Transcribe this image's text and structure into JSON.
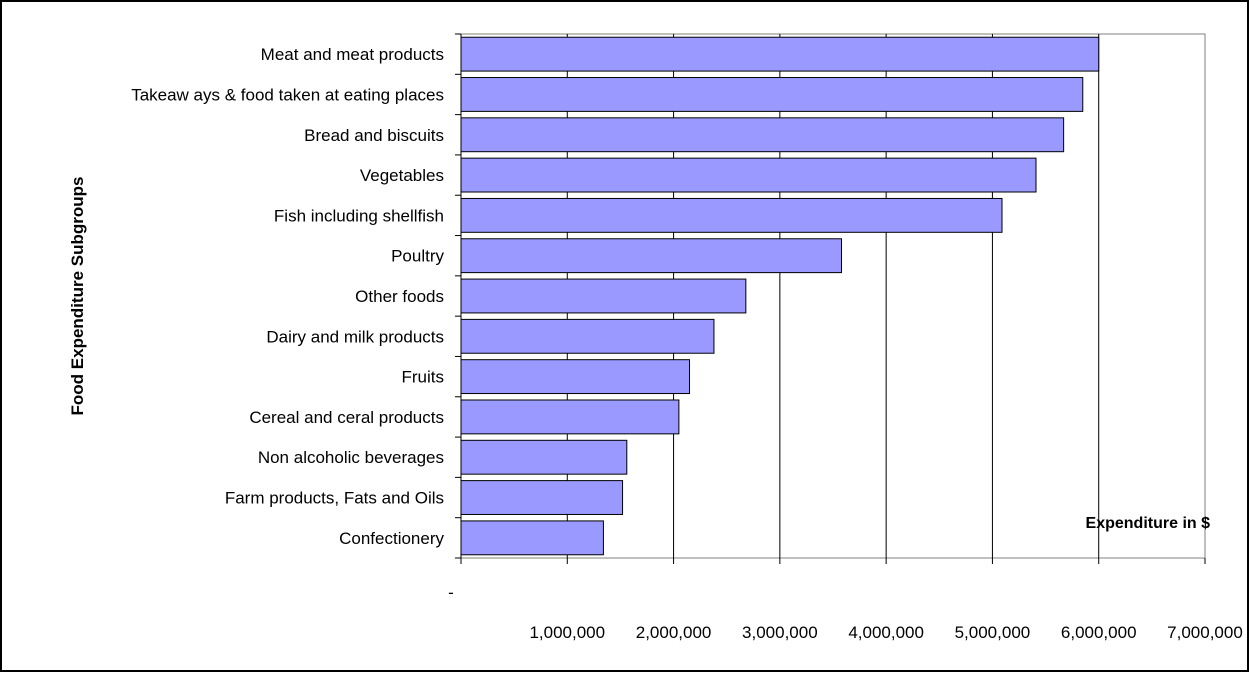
{
  "chart_data": {
    "type": "bar",
    "orientation": "horizontal",
    "title": "",
    "xlabel": "Expenditure in $",
    "ylabel": "Food Expenditure Subgroups",
    "categories": [
      "Meat and meat products",
      "Takeaw ays & food taken at eating places",
      "Bread and biscuits",
      "Vegetables",
      "Fish including shellfish",
      "Poultry",
      "Other foods",
      "Dairy and milk products",
      "Fruits",
      "Cereal and ceral products",
      "Non alcoholic beverages",
      "Farm products, Fats and Oils",
      "Confectionery"
    ],
    "values": [
      6000000,
      5850000,
      5670000,
      5410000,
      5090000,
      3580000,
      2680000,
      2380000,
      2150000,
      2050000,
      1560000,
      1520000,
      1340000
    ],
    "xlim": [
      0,
      7000000
    ],
    "x_ticks": [
      0,
      1000000,
      2000000,
      3000000,
      4000000,
      5000000,
      6000000,
      7000000
    ],
    "x_tick_labels": [
      "-",
      "1,000,000",
      "2,000,000",
      "3,000,000",
      "4,000,000",
      "5,000,000",
      "6,000,000",
      "7,000,000"
    ],
    "grid": "vertical",
    "bar_color": "#9999ff",
    "bar_edge_color": "#000000",
    "grid_color": "#000000",
    "plot_border_color": "#808080"
  }
}
